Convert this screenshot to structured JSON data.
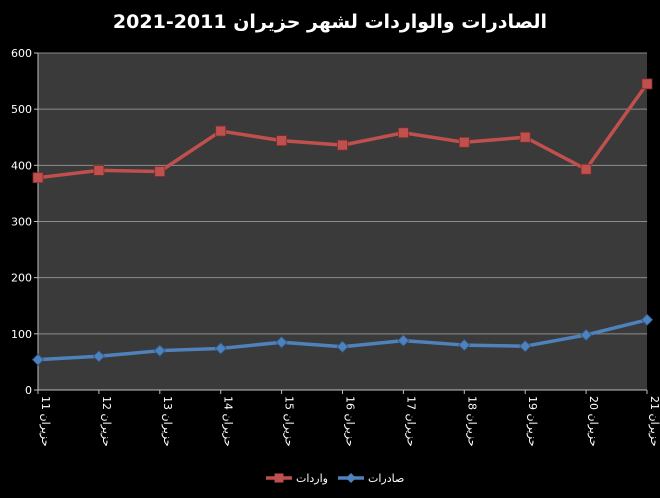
{
  "chart_data": {
    "type": "line",
    "title": "الصادرات والواردات لشهر حزيران 2011-2021",
    "xlabel": "",
    "ylabel": "",
    "categories": [
      "حزيران 11",
      "حزيران 12",
      "حزيران 13",
      "حزيران 14",
      "حزيران 15",
      "حزيران 16",
      "حزيران 17",
      "حزيران 18",
      "حزيران 19",
      "حزيران 20",
      "حزيران 21"
    ],
    "ylim": [
      0,
      600
    ],
    "yticks": [
      "0",
      "100",
      "200",
      "300",
      "400",
      "500",
      "600"
    ],
    "grid": true,
    "legend_position": "bottom",
    "plot_background": "#3a3a3a",
    "series": [
      {
        "name": "واردات",
        "color": "#c0504d",
        "marker": "square",
        "values": [
          378,
          391,
          389,
          461,
          444,
          436,
          458,
          441,
          450,
          393,
          545
        ]
      },
      {
        "name": "صادرات",
        "color": "#4f81bd",
        "marker": "diamond",
        "values": [
          54,
          60,
          70,
          74,
          85,
          77,
          88,
          80,
          78,
          98,
          125
        ]
      }
    ]
  }
}
